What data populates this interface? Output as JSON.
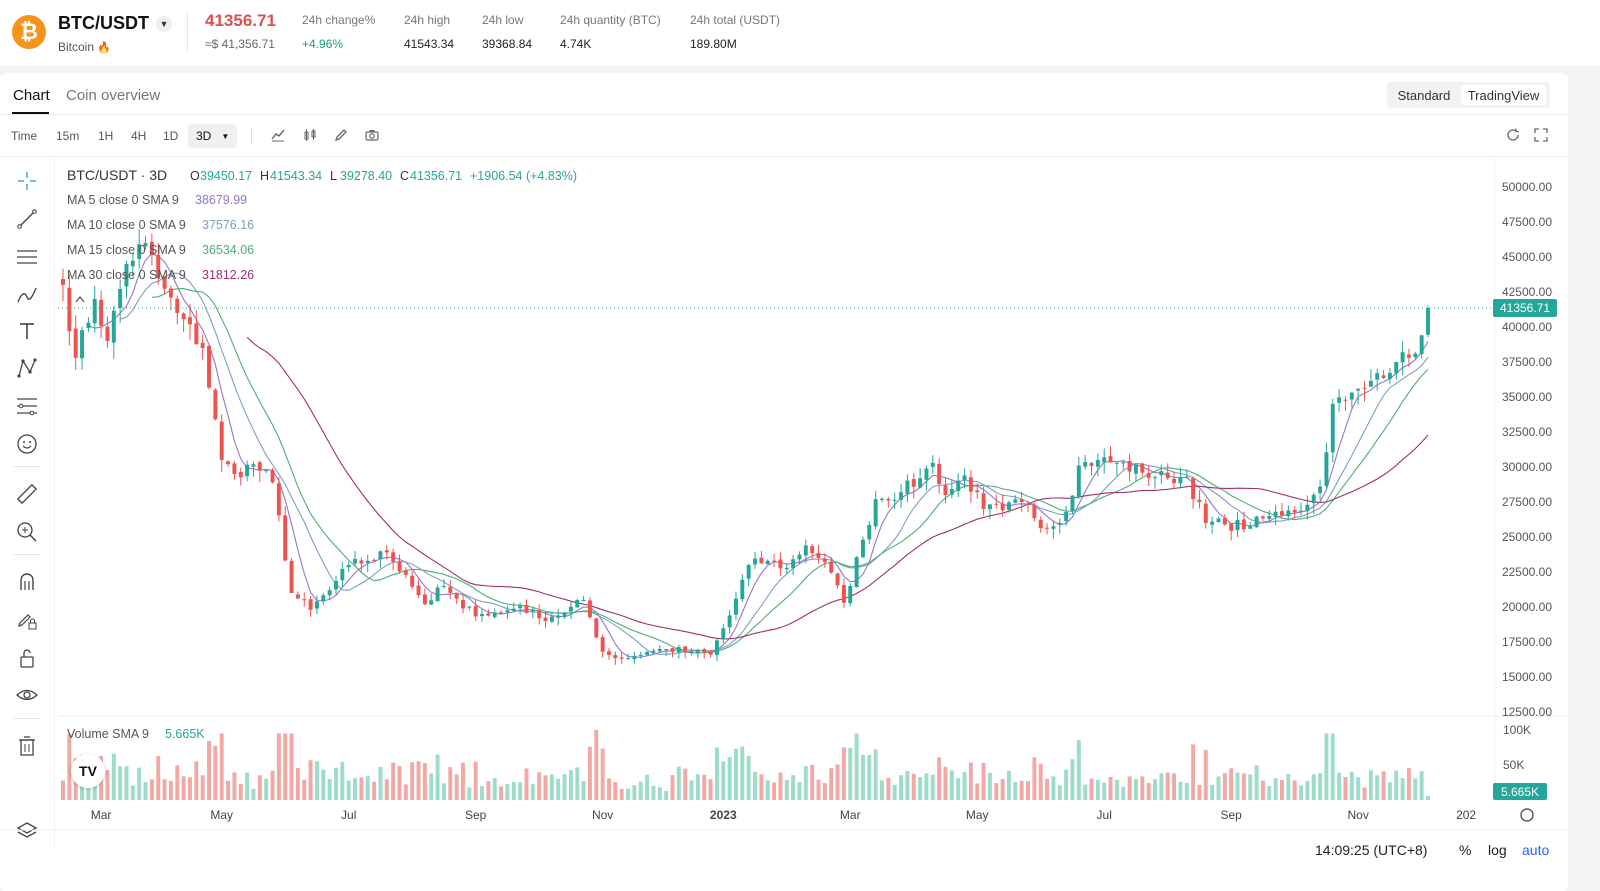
{
  "ticker": {
    "coin_logo": "₿",
    "pair": "BTC/USDT",
    "coin_name": "Bitcoin",
    "last_price": "41356.71",
    "usd_price": "≈$ 41,356.71",
    "stats": [
      {
        "label": "24h change%",
        "value": "+4.96%",
        "up": true
      },
      {
        "label": "24h high",
        "value": "41543.34",
        "up": false
      },
      {
        "label": "24h low",
        "value": "39368.84",
        "up": false
      },
      {
        "label": "24h quantity (BTC)",
        "value": "4.74K",
        "up": false
      },
      {
        "label": "24h total (USDT)",
        "value": "189.80M",
        "up": false
      }
    ]
  },
  "tabs": [
    {
      "label": "Chart",
      "active": true
    },
    {
      "label": "Coin overview",
      "active": false
    }
  ],
  "view_toggle": {
    "standard": "Standard",
    "tradingview": "TradingView"
  },
  "toolbar": {
    "time_label": "Time",
    "intervals": [
      "15m",
      "1H",
      "4H",
      "1D"
    ],
    "selected_interval": "3D",
    "icons": [
      "line-chart-icon",
      "candles-icon",
      "pencil-icon",
      "camera-icon"
    ],
    "right_icons": [
      "refresh-icon",
      "fullscreen-icon"
    ]
  },
  "left_tools": [
    "crosshair-icon",
    "trend-line-icon",
    "parallel-lines-icon",
    "brush-icon",
    "text-icon",
    "pattern-icon",
    "fib-icon",
    "emoji-icon",
    "ruler-icon",
    "zoom-icon",
    "magnet-icon",
    "lock-draw-icon",
    "unlock-icon",
    "eye-icon",
    "trash-icon",
    "layers-icon"
  ],
  "legend": {
    "title": "BTC/USDT · 3D",
    "ohlc": [
      {
        "k": "O",
        "v": "39450.17"
      },
      {
        "k": "H",
        "v": "41543.34"
      },
      {
        "k": "L",
        "v": "39278.40"
      },
      {
        "k": "C",
        "v": "41356.71"
      }
    ],
    "change": "+1906.54 (+4.83%)",
    "mas": [
      {
        "label": "MA 5 close 0 SMA 9",
        "value": "38679.99",
        "color": "#9575cd"
      },
      {
        "label": "MA 10 close 0 SMA 9",
        "value": "37576.16",
        "color": "#7e9fc0"
      },
      {
        "label": "MA 15 close 0 SMA 9",
        "value": "36534.06",
        "color": "#4caf73"
      },
      {
        "label": "MA 30 close 0 SMA 9",
        "value": "31812.26",
        "color": "#a0306e"
      }
    ]
  },
  "volume_legend": {
    "label": "Volume SMA 9",
    "value": "5.665K"
  },
  "price_axis": [
    "50000.00",
    "47500.00",
    "45000.00",
    "42500.00",
    "40000.00",
    "37500.00",
    "35000.00",
    "32500.00",
    "30000.00",
    "27500.00",
    "25000.00",
    "22500.00",
    "20000.00",
    "17500.00",
    "15000.00",
    "12500.00"
  ],
  "price_tag": "41356.71",
  "volume_axis": [
    "100K",
    "50K"
  ],
  "volume_tag": "5.665K",
  "time_axis": [
    "Mar",
    "May",
    "Jul",
    "Sep",
    "Nov",
    "2023",
    "Mar",
    "May",
    "Jul",
    "Sep",
    "Nov",
    "202"
  ],
  "footer": {
    "clock": "14:09:25 (UTC+8)",
    "percent": "%",
    "log": "log",
    "auto": "auto"
  },
  "colors": {
    "up": "#26a69a",
    "down": "#ef5350",
    "up_text": "#14a37f",
    "down_text": "#e04f4f"
  },
  "chart_data": {
    "type": "candlestick",
    "title": "BTC/USDT · 3D",
    "ylim": [
      12500,
      50000
    ],
    "x_ticks": [
      {
        "label": "Mar",
        "index": 6
      },
      {
        "label": "May",
        "index": 25
      },
      {
        "label": "Jul",
        "index": 45
      },
      {
        "label": "Sep",
        "index": 65
      },
      {
        "label": "Nov",
        "index": 85
      },
      {
        "label": "2023",
        "index": 104
      },
      {
        "label": "Mar",
        "index": 124
      },
      {
        "label": "May",
        "index": 144
      },
      {
        "label": "Jul",
        "index": 164
      },
      {
        "label": "Sep",
        "index": 184
      },
      {
        "label": "Nov",
        "index": 204
      },
      {
        "label": "202",
        "index": 221
      }
    ],
    "close_anchors": [
      [
        0,
        43000
      ],
      [
        2,
        37800
      ],
      [
        5,
        42000
      ],
      [
        7,
        39000
      ],
      [
        10,
        44500
      ],
      [
        13,
        46000
      ],
      [
        15,
        43500
      ],
      [
        18,
        41000
      ],
      [
        22,
        38500
      ],
      [
        25,
        30500
      ],
      [
        27,
        29500
      ],
      [
        30,
        30200
      ],
      [
        33,
        28900
      ],
      [
        36,
        21000
      ],
      [
        39,
        19800
      ],
      [
        42,
        21200
      ],
      [
        45,
        23000
      ],
      [
        48,
        23300
      ],
      [
        51,
        23900
      ],
      [
        54,
        22300
      ],
      [
        57,
        20200
      ],
      [
        60,
        21500
      ],
      [
        63,
        19900
      ],
      [
        66,
        19500
      ],
      [
        69,
        19600
      ],
      [
        72,
        20100
      ],
      [
        75,
        19200
      ],
      [
        79,
        19600
      ],
      [
        82,
        20500
      ],
      [
        85,
        16800
      ],
      [
        88,
        16300
      ],
      [
        92,
        16800
      ],
      [
        95,
        17000
      ],
      [
        99,
        16800
      ],
      [
        102,
        16600
      ],
      [
        105,
        19400
      ],
      [
        108,
        23000
      ],
      [
        111,
        23300
      ],
      [
        114,
        22800
      ],
      [
        117,
        24400
      ],
      [
        120,
        23200
      ],
      [
        123,
        20300
      ],
      [
        126,
        24800
      ],
      [
        128,
        27700
      ],
      [
        132,
        28200
      ],
      [
        135,
        29200
      ],
      [
        137,
        30300
      ],
      [
        139,
        28000
      ],
      [
        142,
        29400
      ],
      [
        145,
        27000
      ],
      [
        148,
        26900
      ],
      [
        151,
        27500
      ],
      [
        155,
        25600
      ],
      [
        158,
        26800
      ],
      [
        160,
        30100
      ],
      [
        163,
        30500
      ],
      [
        166,
        30300
      ],
      [
        170,
        29600
      ],
      [
        174,
        29200
      ],
      [
        177,
        29300
      ],
      [
        180,
        26000
      ],
      [
        183,
        25900
      ],
      [
        187,
        25800
      ],
      [
        190,
        26500
      ],
      [
        193,
        26900
      ],
      [
        196,
        27300
      ],
      [
        198,
        28600
      ],
      [
        200,
        34500
      ],
      [
        202,
        34800
      ],
      [
        205,
        35600
      ],
      [
        207,
        36700
      ],
      [
        210,
        37500
      ],
      [
        212,
        37800
      ],
      [
        214,
        39400
      ],
      [
        215,
        41356.71
      ]
    ],
    "volume_peak_index": 84,
    "series": [
      {
        "name": "MA 5 close 0 SMA 9",
        "period": 5,
        "last": 38679.99
      },
      {
        "name": "MA 10 close 0 SMA 9",
        "period": 10,
        "last": 37576.16
      },
      {
        "name": "MA 15 close 0 SMA 9",
        "period": 15,
        "last": 36534.06
      },
      {
        "name": "MA 30 close 0 SMA 9",
        "period": 30,
        "last": 31812.26
      }
    ],
    "volume_ylim": [
      0,
      100000
    ]
  }
}
